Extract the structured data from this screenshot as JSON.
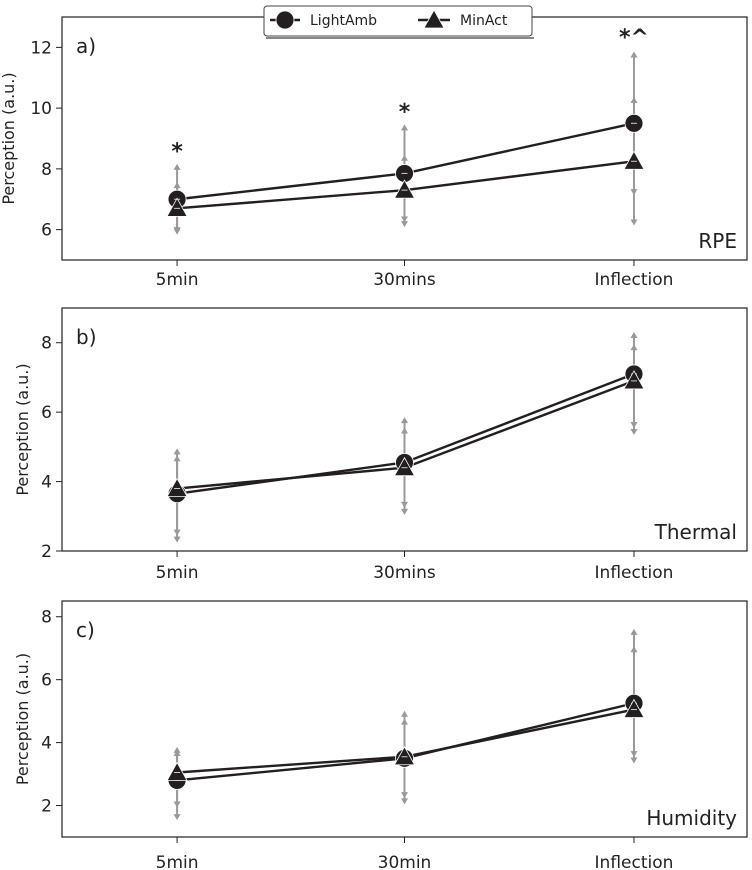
{
  "chart_data": [
    {
      "type": "line",
      "panel_label": "a)",
      "measure_label": "RPE",
      "ylabel": "Perception (a.u.)",
      "categories": [
        "5min",
        "30mins",
        "Inflection"
      ],
      "ylim": [
        5,
        13
      ],
      "yticks": [
        6,
        8,
        10,
        12
      ],
      "series": [
        {
          "name": "LightAmb",
          "marker": "circle",
          "values": [
            7.0,
            7.85,
            9.5
          ],
          "err_low": [
            5.95,
            6.3,
            7.2
          ],
          "err_high": [
            8.1,
            9.4,
            11.8
          ]
        },
        {
          "name": "MinAct",
          "marker": "triangle",
          "values": [
            6.7,
            7.3,
            8.25
          ],
          "err_low": [
            5.9,
            6.15,
            6.2
          ],
          "err_high": [
            7.5,
            8.4,
            10.3
          ]
        }
      ],
      "annotations": [
        {
          "category": "5min",
          "text": "*",
          "y": 8.6
        },
        {
          "category": "30mins",
          "text": "*",
          "y": 9.9
        },
        {
          "category": "Inflection",
          "text": "*^",
          "y": 12.35
        }
      ]
    },
    {
      "type": "line",
      "panel_label": "b)",
      "measure_label": "Thermal",
      "ylabel": "Perception (a.u.)",
      "categories": [
        "5min",
        "30mins",
        "Inflection"
      ],
      "ylim": [
        2,
        9
      ],
      "yticks": [
        2,
        4,
        6,
        8
      ],
      "series": [
        {
          "name": "LightAmb",
          "marker": "circle",
          "values": [
            3.65,
            4.55,
            7.1
          ],
          "err_low": [
            2.3,
            3.1,
            5.4
          ],
          "err_high": [
            4.9,
            5.8,
            8.25
          ]
        },
        {
          "name": "MinAct",
          "marker": "triangle",
          "values": [
            3.8,
            4.4,
            6.9
          ],
          "err_low": [
            2.5,
            3.3,
            5.6
          ],
          "err_high": [
            4.7,
            5.5,
            7.9
          ]
        }
      ],
      "annotations": []
    },
    {
      "type": "line",
      "panel_label": "c)",
      "measure_label": "Humidity",
      "ylabel": "Perception (a.u.)",
      "categories": [
        "5min",
        "30min",
        "Inflection"
      ],
      "ylim": [
        1,
        8.5
      ],
      "yticks": [
        2,
        4,
        6,
        8
      ],
      "series": [
        {
          "name": "LightAmb",
          "marker": "circle",
          "values": [
            2.8,
            3.5,
            5.25
          ],
          "err_low": [
            1.6,
            2.1,
            3.4
          ],
          "err_high": [
            3.8,
            4.95,
            7.55
          ]
        },
        {
          "name": "MinAct",
          "marker": "triangle",
          "values": [
            3.05,
            3.55,
            5.05
          ],
          "err_low": [
            2.0,
            2.3,
            3.6
          ],
          "err_high": [
            3.7,
            4.7,
            7.0
          ]
        }
      ],
      "annotations": []
    }
  ],
  "legend": {
    "entries": [
      {
        "label": "LightAmb",
        "marker": "circle"
      },
      {
        "label": "MinAct",
        "marker": "triangle"
      }
    ]
  },
  "colors": {
    "line": "#231f20",
    "error": "#999999"
  }
}
